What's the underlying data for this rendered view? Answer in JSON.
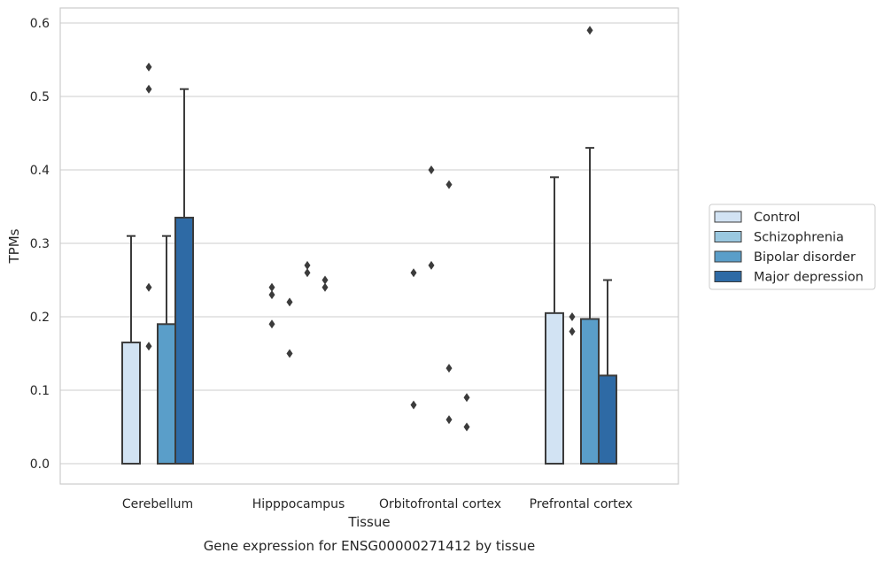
{
  "chart_data": {
    "type": "bar",
    "caption": "Gene expression for ENSG00000271412 by tissue",
    "xlabel": "Tissue",
    "ylabel": "TPMs",
    "ylim": [
      -0.028,
      0.62
    ],
    "yticks": [
      0.0,
      0.1,
      0.2,
      0.3,
      0.4,
      0.5,
      0.6
    ],
    "ytick_labels": [
      "0.0",
      "0.1",
      "0.2",
      "0.3",
      "0.4",
      "0.5",
      "0.6"
    ],
    "grid": true,
    "legend_position": "outside-right",
    "categories": [
      "Cerebellum",
      "Hipppocampus",
      "Orbitofrontal cortex",
      "Prefrontal cortex"
    ],
    "series": [
      {
        "name": "Control",
        "color": "#d2e3f3",
        "values": [
          0.165,
          0.0,
          0.0,
          0.205
        ],
        "whisker_top": [
          0.31,
          null,
          null,
          0.39
        ],
        "outliers": [
          [],
          [
            0.19,
            0.23,
            0.24
          ],
          [
            0.08,
            0.26
          ],
          []
        ]
      },
      {
        "name": "Schizophrenia",
        "color": "#9ac8e0",
        "values": [
          0.0,
          0.0,
          0.0,
          0.0
        ],
        "whisker_top": [
          null,
          null,
          null,
          null
        ],
        "outliers": [
          [
            0.16,
            0.24,
            0.51,
            0.54
          ],
          [
            0.15,
            0.22
          ],
          [
            0.27,
            0.4
          ],
          [
            0.18,
            0.2
          ]
        ]
      },
      {
        "name": "Bipolar disorder",
        "color": "#5a9ec9",
        "values": [
          0.19,
          0.0,
          0.0,
          0.197
        ],
        "whisker_top": [
          0.31,
          null,
          null,
          0.43
        ],
        "outliers": [
          [],
          [
            0.26,
            0.27
          ],
          [
            0.06,
            0.13,
            0.38
          ],
          [
            0.59
          ]
        ]
      },
      {
        "name": "Major depression",
        "color": "#2e6aa5",
        "values": [
          0.335,
          0.0,
          0.0,
          0.12
        ],
        "whisker_top": [
          0.51,
          null,
          null,
          0.25
        ],
        "outliers": [
          [],
          [
            0.24,
            0.25
          ],
          [
            0.05,
            0.09
          ],
          []
        ]
      }
    ]
  }
}
